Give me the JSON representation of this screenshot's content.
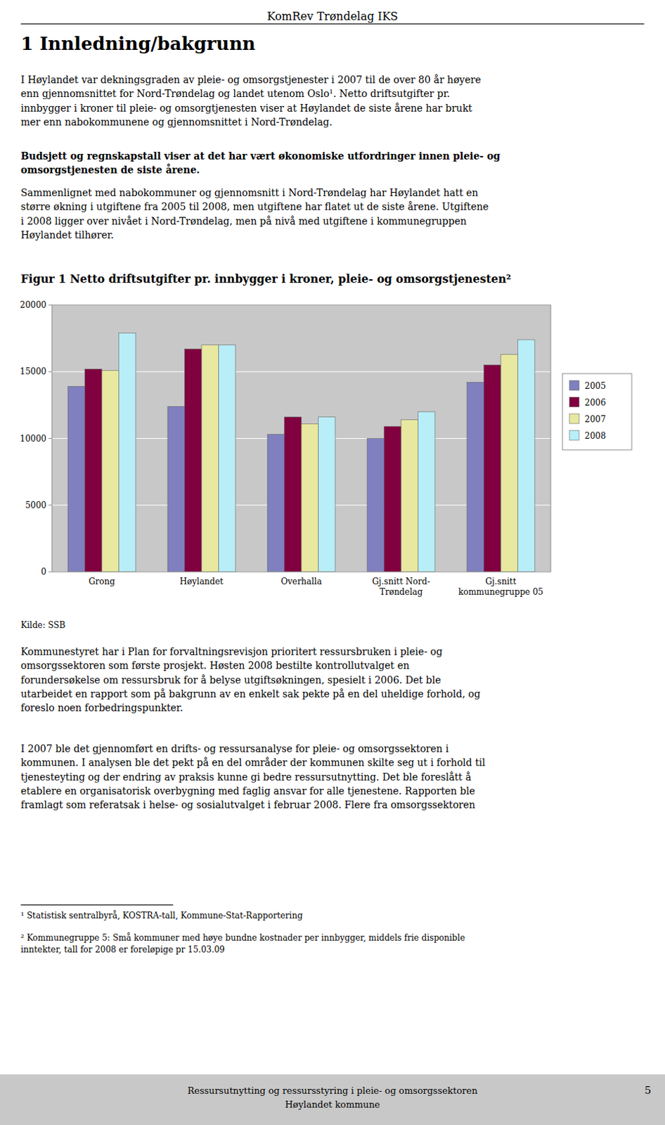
{
  "page": {
    "header": "KomRev Trøndelag IKS",
    "section_title": "1 Innledning/bakgrunn",
    "paragraphs": [
      "I Høylandet var dekningsgraden av pleie- og omsorgstjenester i 2007 til de over 80 år høyere\nenn gjennomsnittet for Nord-Trøndelag og landet utenom Oslo¹. Netto driftsutgifter pr.\ninnbygger i kroner til pleie- og omsorgtjenesten viser at Høylandet de siste årene har brukt\nmer enn nabokommunene og gjennomsnittet i Nord-Trøndelag.",
      "Budsjett og regnskapstall viser at det har vært økonomiske utfordringer innen pleie- og\nomsorgstjenesten de siste årene.",
      "Sammenlignet med nabokommuner og gjennomsnitt i Nord-Trøndelag har Høylandet hatt en\nstørre økning i utgiftene fra 2005 til 2008, men utgiftene har flatet ut de siste årene. Utgiftene\ni 2008 ligger over nivået i Nord-Trøndelag, men på nivå med utgiftene i kommunegruppen\nHøylandet tilhører.",
      "Kommunestyret har i Plan for forvaltningsrevisjon prioritert ressursbruken i pleie- og\nomsorgssektoren som første prosjekt. Høsten 2008 bestilte kontrollutvalget en\nforundersøkelse om ressursbruk for å belyse utgiftsøkningen, spesielt i 2006. Det ble\nutarbeidet en rapport som på bakgrunn av en enkelt sak pekte på en del uheldige forhold, og\nforeslo noen forbedringspunkter.",
      "I 2007 ble det gjennomført en drifts- og ressursanalyse for pleie- og omsorgssektoren i\nkommunen. I analysen ble det pekt på en del områder der kommunen skilte seg ut i forhold til\ntjenesteyting og der endring av praksis kunne gi bedre ressursutnytting. Det ble foreslått å\netablere en organisatorisk overbygning med faglig ansvar for alle tjenestene. Rapporten ble\nframlagt som referatsak i helse- og sosialutvalget i februar 2008. Flere fra omsorgssektoren"
    ],
    "source": "Kilde: SSB",
    "footnotes": [
      "¹ Statistisk sentralbyrå, KOSTRA-tall, Kommune-Stat-Rapportering",
      "² Kommunegruppe 5: Små kommuner med høye bundne kostnader per innbygger, middels frie disponible\ninntekter, tall for 2008 er foreløpige pr 15.03.09"
    ],
    "footer": "Ressursutnytting og ressursstyring i pleie- og omsorgssektoren\nHøylandet kommune",
    "page_number": "5"
  },
  "chart_data": {
    "type": "bar",
    "title": "Figur 1 Netto driftsutgifter pr. innbygger i kroner, pleie- og omsorgstjenesten²",
    "categories": [
      "Grong",
      "Høylandet",
      "Overhalla",
      "Gj.snitt Nord-\nTrøndelag",
      "Gj.snitt\nkommunegruppe 05"
    ],
    "series": [
      {
        "name": "2005",
        "color": "#8080c0",
        "values": [
          13900,
          12400,
          10300,
          10000,
          14200
        ]
      },
      {
        "name": "2006",
        "color": "#800040",
        "values": [
          15200,
          16700,
          11600,
          10900,
          15500
        ]
      },
      {
        "name": "2007",
        "color": "#e8e8a0",
        "values": [
          15100,
          17000,
          11100,
          11400,
          16300
        ]
      },
      {
        "name": "2008",
        "color": "#b8eef8",
        "values": [
          17900,
          17000,
          11600,
          12000,
          17400
        ]
      }
    ],
    "ylim": [
      0,
      20000
    ],
    "yticks": [
      0,
      5000,
      10000,
      15000,
      20000
    ],
    "grid": true,
    "legend": "right"
  }
}
